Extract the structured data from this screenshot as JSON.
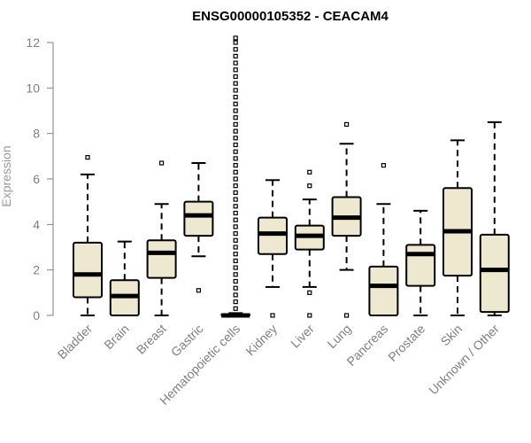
{
  "chart_data": {
    "type": "boxplot",
    "title": "ENSG00000105352 - CEACAM4",
    "xlabel": "",
    "ylabel": "Expression",
    "ylim": [
      0,
      12
    ],
    "yticks": [
      0,
      2,
      4,
      6,
      8,
      10,
      12
    ],
    "box_fill": "#efe8d0",
    "categories": [
      "Bladder",
      "Brain",
      "Breast",
      "Gastric",
      "Hematopoietic cells",
      "Kidney",
      "Liver",
      "Lung",
      "Pancreas",
      "Prostate",
      "Skin",
      "Unknown / Other"
    ],
    "series": [
      {
        "name": "Bladder",
        "min": 0,
        "q1": 0.8,
        "median": 1.8,
        "q3": 3.2,
        "max": 6.2,
        "outliers": [
          6.95
        ]
      },
      {
        "name": "Brain",
        "min": 0,
        "q1": 0,
        "median": 0.85,
        "q3": 1.55,
        "max": 3.25,
        "outliers": []
      },
      {
        "name": "Breast",
        "min": 0,
        "q1": 1.65,
        "median": 2.75,
        "q3": 3.3,
        "max": 4.9,
        "outliers": [
          6.7
        ]
      },
      {
        "name": "Gastric",
        "min": 2.6,
        "q1": 3.5,
        "median": 4.4,
        "q3": 5.0,
        "max": 6.7,
        "outliers": [
          1.1
        ]
      },
      {
        "name": "Hematopoietic cells",
        "min": 0,
        "q1": 0,
        "median": 0,
        "q3": 0.05,
        "max": 0.1,
        "outliers": [
          0.3,
          0.6,
          0.9,
          1.2,
          1.5,
          1.8,
          2.1,
          2.4,
          2.7,
          3.0,
          3.3,
          3.6,
          3.9,
          4.2,
          4.5,
          4.8,
          5.1,
          5.4,
          5.7,
          6.0,
          6.3,
          6.6,
          6.9,
          7.2,
          7.5,
          7.8,
          8.1,
          8.4,
          8.7,
          9.0,
          9.3,
          9.6,
          9.9,
          10.2,
          10.5,
          10.8,
          11.1,
          11.4,
          11.7,
          12.0,
          12.2
        ]
      },
      {
        "name": "Kidney",
        "min": 1.25,
        "q1": 2.7,
        "median": 3.6,
        "q3": 4.3,
        "max": 5.95,
        "outliers": [
          0
        ]
      },
      {
        "name": "Liver",
        "min": 1.25,
        "q1": 2.9,
        "median": 3.5,
        "q3": 3.95,
        "max": 5.1,
        "outliers": [
          0,
          1.0,
          5.7,
          6.3
        ]
      },
      {
        "name": "Lung",
        "min": 2.0,
        "q1": 3.5,
        "median": 4.3,
        "q3": 5.2,
        "max": 7.55,
        "outliers": [
          0,
          8.4
        ]
      },
      {
        "name": "Pancreas",
        "min": 0,
        "q1": 0,
        "median": 1.3,
        "q3": 2.15,
        "max": 4.9,
        "outliers": [
          6.6
        ]
      },
      {
        "name": "Prostate",
        "min": 0,
        "q1": 1.3,
        "median": 2.7,
        "q3": 3.1,
        "max": 4.6,
        "outliers": []
      },
      {
        "name": "Skin",
        "min": 0,
        "q1": 1.75,
        "median": 3.7,
        "q3": 5.6,
        "max": 7.7,
        "outliers": []
      },
      {
        "name": "Unknown / Other",
        "min": 0,
        "q1": 0.15,
        "median": 2.0,
        "q3": 3.55,
        "max": 8.5,
        "outliers": []
      }
    ]
  }
}
